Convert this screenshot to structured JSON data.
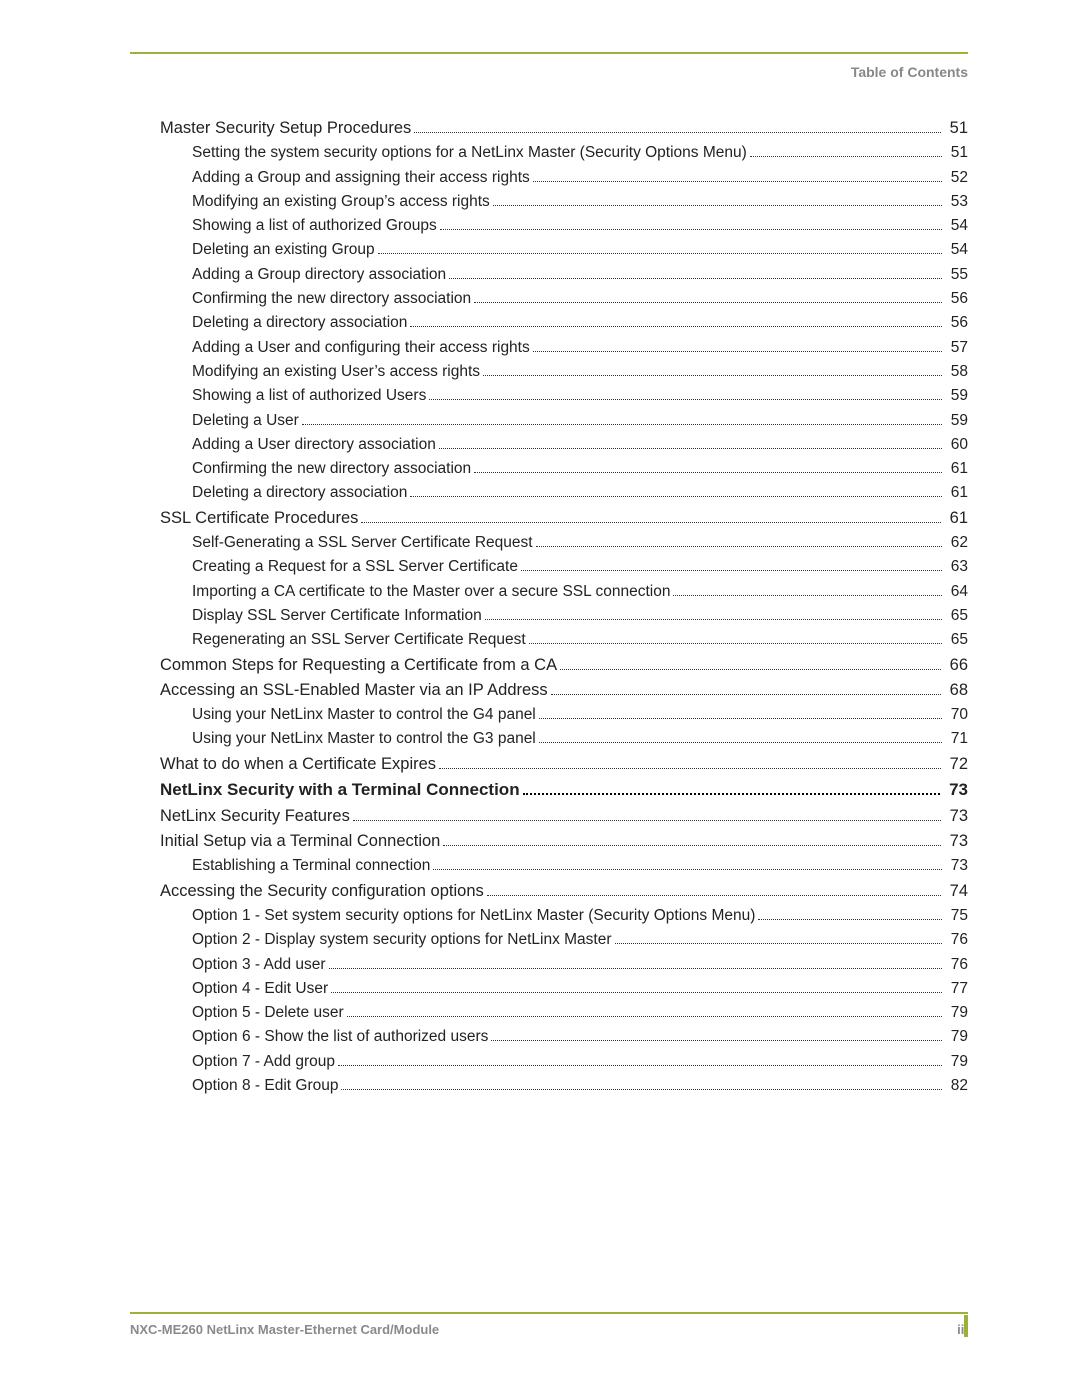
{
  "header": {
    "section_label": "Table of Contents"
  },
  "footer": {
    "doc_title": "NXC-ME260 NetLinx Master-Ethernet Card/Module",
    "page_number": "iii"
  },
  "colors": {
    "accent": "#9ab23a",
    "muted_text": "#888888",
    "body_text": "#222222",
    "background": "#ffffff"
  },
  "typography": {
    "body_font": "Arial, Helvetica, sans-serif",
    "level0_fontsize_pt": 13,
    "level1_fontsize_pt": 12.5,
    "level2_fontsize_pt": 11.5,
    "header_fontsize_pt": 10.5,
    "footer_fontsize_pt": 10
  },
  "toc": {
    "entries": [
      {
        "level": 1,
        "title": "Master Security Setup Procedures",
        "page": "51"
      },
      {
        "level": 2,
        "title": "Setting the system security options for a NetLinx Master (Security Options Menu) ",
        "page": "51"
      },
      {
        "level": 2,
        "title": "Adding a Group and assigning their access rights",
        "page": "52"
      },
      {
        "level": 2,
        "title": "Modifying an existing Group’s access rights",
        "page": "53"
      },
      {
        "level": 2,
        "title": "Showing a list of authorized Groups ",
        "page": "54"
      },
      {
        "level": 2,
        "title": "Deleting an existing Group",
        "page": "54"
      },
      {
        "level": 2,
        "title": "Adding a Group directory association ",
        "page": "55"
      },
      {
        "level": 2,
        "title": "Confirming the new directory association ",
        "page": "56"
      },
      {
        "level": 2,
        "title": "Deleting a directory association ",
        "page": "56"
      },
      {
        "level": 2,
        "title": "Adding a User and configuring their access rights",
        "page": "57"
      },
      {
        "level": 2,
        "title": "Modifying an existing User’s access rights ",
        "page": "58"
      },
      {
        "level": 2,
        "title": "Showing a list of authorized Users",
        "page": "59"
      },
      {
        "level": 2,
        "title": "Deleting a User ",
        "page": "59"
      },
      {
        "level": 2,
        "title": "Adding a User directory association",
        "page": "60"
      },
      {
        "level": 2,
        "title": "Confirming the new directory association ",
        "page": "61"
      },
      {
        "level": 2,
        "title": "Deleting a directory association ",
        "page": "61"
      },
      {
        "level": 1,
        "title": "SSL Certificate Procedures",
        "page": "61"
      },
      {
        "level": 2,
        "title": "Self-Generating a SSL Server Certificate Request",
        "page": "62"
      },
      {
        "level": 2,
        "title": "Creating a Request for a SSL Server Certificate ",
        "page": "63"
      },
      {
        "level": 2,
        "title": "Importing a CA certificate to the Master over a secure SSL connection",
        "page": "64"
      },
      {
        "level": 2,
        "title": "Display SSL Server Certificate Information",
        "page": "65"
      },
      {
        "level": 2,
        "title": "Regenerating an SSL Server Certificate Request",
        "page": "65"
      },
      {
        "level": 1,
        "title": "Common Steps for Requesting a Certificate from a CA",
        "page": "66"
      },
      {
        "level": 1,
        "title": "Accessing an SSL-Enabled Master via an IP Address",
        "page": "68"
      },
      {
        "level": 2,
        "title": "Using your NetLinx Master to control the G4 panel ",
        "page": "70"
      },
      {
        "level": 2,
        "title": "Using your NetLinx Master to control the G3 panel ",
        "page": "71"
      },
      {
        "level": 1,
        "title": "What to do when a Certificate Expires ",
        "page": "72"
      },
      {
        "level": 0,
        "title": "NetLinx Security with a Terminal Connection ",
        "page": "73"
      },
      {
        "level": 1,
        "title": "NetLinx Security Features",
        "page": "73"
      },
      {
        "level": 1,
        "title": "Initial Setup via a Terminal Connection",
        "page": "73"
      },
      {
        "level": 2,
        "title": "Establishing a Terminal connection ",
        "page": "73"
      },
      {
        "level": 1,
        "title": "Accessing the Security configuration options",
        "page": "74"
      },
      {
        "level": 2,
        "title": "Option 1 - Set system security options for NetLinx Master (Security Options Menu) ",
        "page": "75"
      },
      {
        "level": 2,
        "title": "Option 2 - Display system security options for NetLinx Master",
        "page": "76"
      },
      {
        "level": 2,
        "title": "Option 3 - Add user",
        "page": "76"
      },
      {
        "level": 2,
        "title": "Option 4 - Edit User",
        "page": "77"
      },
      {
        "level": 2,
        "title": "Option 5 - Delete user",
        "page": "79"
      },
      {
        "level": 2,
        "title": "Option 6 - Show the list of authorized users ",
        "page": "79"
      },
      {
        "level": 2,
        "title": "Option 7 - Add group",
        "page": "79"
      },
      {
        "level": 2,
        "title": "Option 8 - Edit Group ",
        "page": "82"
      }
    ]
  }
}
